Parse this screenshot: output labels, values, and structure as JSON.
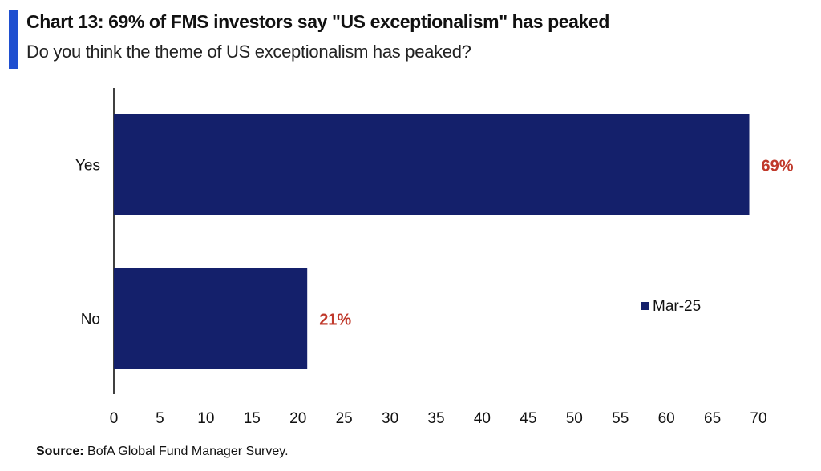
{
  "header": {
    "title": "Chart 13: 69% of FMS investors say \"US exceptionalism\" has peaked",
    "subtitle": "Do you think the theme of US exceptionalism has peaked?"
  },
  "footer": {
    "source_label": "Source:",
    "source_text": "BofA Global Fund Manager Survey."
  },
  "colors": {
    "accent": "#1f4fd0",
    "bar": "#14206b",
    "data_label": "#c0392b"
  },
  "chart_data": {
    "type": "bar",
    "orientation": "horizontal",
    "categories": [
      "Yes",
      "No"
    ],
    "series": [
      {
        "name": "Mar-25",
        "values": [
          69,
          21
        ]
      }
    ],
    "data_labels": [
      "69%",
      "21%"
    ],
    "xlim": [
      0,
      70
    ],
    "xticks": [
      0,
      5,
      10,
      15,
      20,
      25,
      30,
      35,
      40,
      45,
      50,
      55,
      60,
      65,
      70
    ],
    "grid": false,
    "legend_position": "right"
  }
}
